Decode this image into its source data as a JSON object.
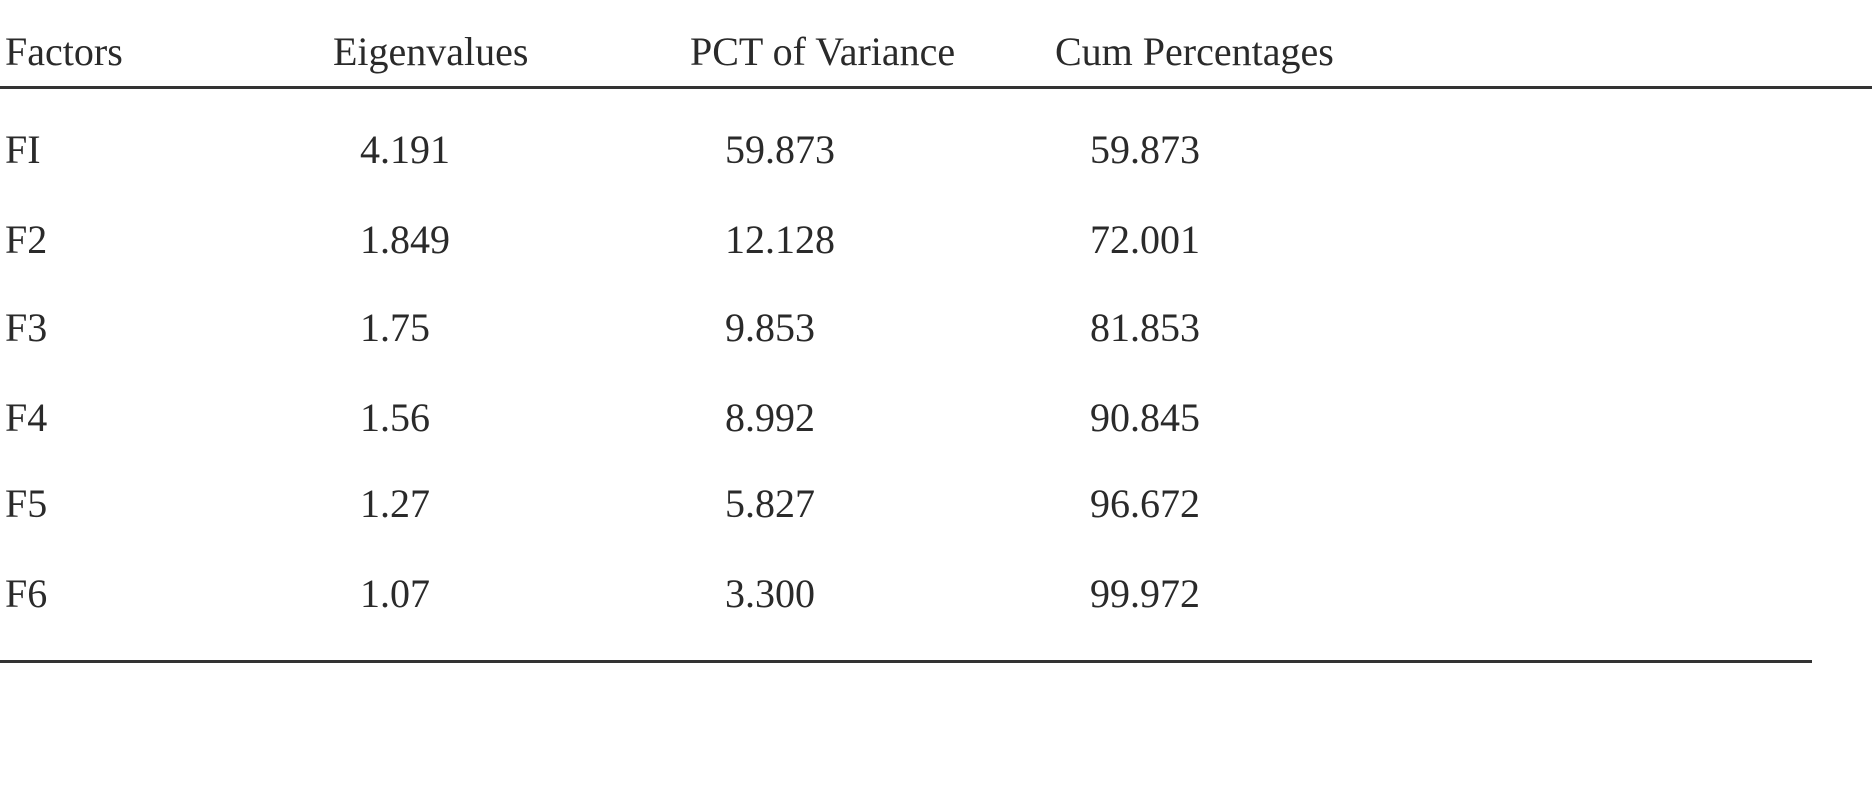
{
  "table": {
    "header": [
      "Factors",
      "Eigenvalues",
      "PCT of Variance",
      "Cum Percentages"
    ],
    "rows": [
      [
        "FI",
        "4.191",
        "59.873",
        "59.873"
      ],
      [
        "F2",
        "1.849",
        "12.128",
        "72.001"
      ],
      [
        "F3",
        "1.75",
        "9.853",
        "81.853"
      ],
      [
        "F4",
        "1.56",
        "8.992",
        "90.845"
      ],
      [
        "F5",
        "1.27",
        "5.827",
        "96.672"
      ],
      [
        "F6",
        "1.07",
        "3.300",
        "99.972"
      ]
    ]
  }
}
